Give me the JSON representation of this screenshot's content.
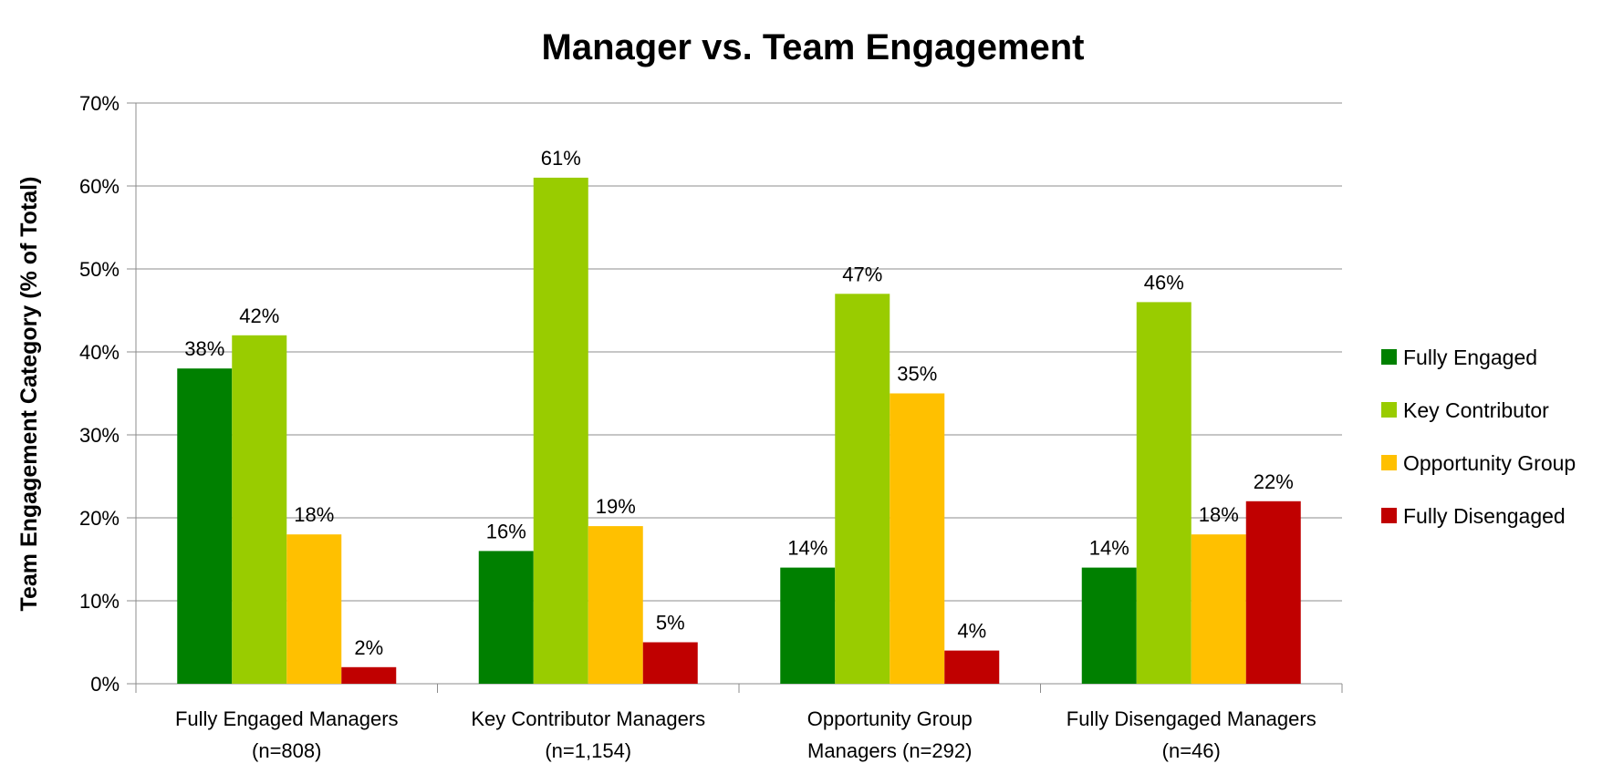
{
  "chart_data": {
    "type": "bar",
    "title": "Manager vs. Team Engagement",
    "xlabel": "",
    "ylabel": "Team Engagement Category (% of Total)",
    "ylim": [
      0,
      70
    ],
    "yticks": [
      "0%",
      "10%",
      "20%",
      "30%",
      "40%",
      "50%",
      "60%",
      "70%"
    ],
    "grid": true,
    "legend_position": "right",
    "categories": [
      [
        "Fully Engaged Managers",
        "(n=808)"
      ],
      [
        "Key Contributor Managers",
        "(n=1,154)"
      ],
      [
        "Opportunity Group",
        "Managers (n=292)"
      ],
      [
        "Fully Disengaged Managers",
        "(n=46)"
      ]
    ],
    "series": [
      {
        "name": "Fully Engaged",
        "color": "#008000",
        "values": [
          38,
          16,
          14,
          14
        ],
        "labels": [
          "38%",
          "16%",
          "14%",
          "14%"
        ]
      },
      {
        "name": "Key Contributor",
        "color": "#99cc00",
        "values": [
          42,
          61,
          47,
          46
        ],
        "labels": [
          "42%",
          "61%",
          "47%",
          "46%"
        ]
      },
      {
        "name": "Opportunity Group",
        "color": "#ffc000",
        "values": [
          18,
          19,
          35,
          18
        ],
        "labels": [
          "18%",
          "19%",
          "35%",
          "18%"
        ]
      },
      {
        "name": "Fully Disengaged",
        "color": "#c00000",
        "values": [
          2,
          5,
          4,
          22
        ],
        "labels": [
          "2%",
          "5%",
          "4%",
          "22%"
        ]
      }
    ]
  }
}
